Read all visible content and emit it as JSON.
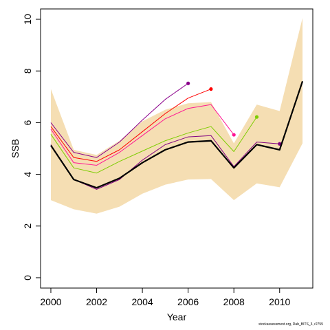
{
  "chart_data": {
    "type": "line",
    "xlabel": "Year",
    "ylabel": "SSB",
    "xlim": [
      1999.55,
      2011.45
    ],
    "ylim": [
      -0.4,
      10.4
    ],
    "x_ticks": [
      2000,
      2002,
      2004,
      2006,
      2008,
      2010
    ],
    "x_tick_labels": [
      "2000",
      "2002",
      "2004",
      "2006",
      "2008",
      "2010"
    ],
    "y_ticks": [
      0,
      2,
      4,
      6,
      8,
      10
    ],
    "y_tick_labels": [
      "0",
      "2",
      "4",
      "6",
      "8",
      "10"
    ],
    "grid": false,
    "legend": "none",
    "confidence_band": {
      "color": "#F5DEB3",
      "x": [
        2000,
        2001,
        2002,
        2003,
        2004,
        2005,
        2006,
        2007,
        2008,
        2009,
        2010,
        2011
      ],
      "lower": [
        3.0,
        2.65,
        2.48,
        2.75,
        3.25,
        3.6,
        3.8,
        3.82,
        3.0,
        3.65,
        3.5,
        5.2
      ],
      "upper": [
        7.3,
        4.95,
        4.75,
        5.3,
        6.05,
        6.5,
        6.75,
        6.8,
        5.2,
        6.7,
        6.45,
        10.05
      ]
    },
    "series": [
      {
        "color": "#000000",
        "width": 2.2,
        "end_marker": false,
        "x": [
          2000,
          2001,
          2002,
          2003,
          2004,
          2005,
          2006,
          2007,
          2008,
          2009,
          2010,
          2011
        ],
        "values": [
          5.12,
          3.8,
          3.48,
          3.85,
          4.45,
          4.95,
          5.25,
          5.3,
          4.25,
          5.15,
          4.95,
          7.6
        ]
      },
      {
        "color": "#800080",
        "width": 1.0,
        "end_marker": true,
        "x": [
          2000,
          2001,
          2002,
          2003,
          2004,
          2005,
          2006,
          2007,
          2008,
          2009,
          2010
        ],
        "values": [
          5.15,
          3.8,
          3.42,
          3.8,
          4.55,
          5.15,
          5.45,
          5.5,
          4.3,
          5.25,
          5.18
        ]
      },
      {
        "color": "#7CCD00",
        "width": 1.0,
        "end_marker": true,
        "x": [
          2000,
          2001,
          2002,
          2003,
          2004,
          2005,
          2006,
          2007,
          2008,
          2009
        ],
        "values": [
          5.55,
          4.25,
          4.05,
          4.5,
          4.9,
          5.3,
          5.6,
          5.85,
          4.88,
          6.22
        ]
      },
      {
        "color": "#FF1493",
        "width": 1.0,
        "end_marker": true,
        "x": [
          2000,
          2001,
          2002,
          2003,
          2004,
          2005,
          2006,
          2007,
          2008
        ],
        "values": [
          5.75,
          4.45,
          4.35,
          4.85,
          5.5,
          6.15,
          6.55,
          6.7,
          5.53
        ]
      },
      {
        "color": "#FF0000",
        "width": 1.0,
        "end_marker": true,
        "x": [
          2000,
          2001,
          2002,
          2003,
          2004,
          2005,
          2006,
          2007
        ],
        "values": [
          5.85,
          4.65,
          4.5,
          4.95,
          5.65,
          6.35,
          6.95,
          7.3
        ]
      },
      {
        "color": "#8B008B",
        "width": 1.0,
        "end_marker": true,
        "x": [
          2000,
          2001,
          2002,
          2003,
          2004,
          2005,
          2006
        ],
        "values": [
          6.0,
          4.85,
          4.65,
          5.25,
          6.1,
          6.9,
          7.52
        ]
      }
    ]
  },
  "credit_text": "stockassessment.org, Dab_BITS_3, r2755"
}
